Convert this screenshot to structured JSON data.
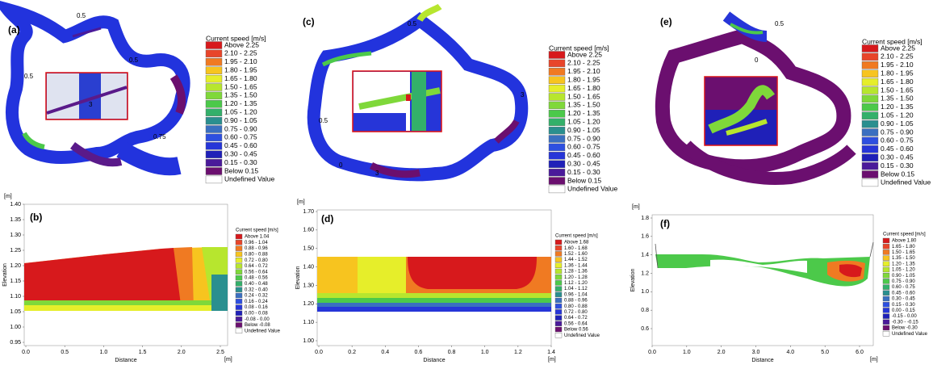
{
  "palette": [
    "#d7191c",
    "#e8452a",
    "#f07a22",
    "#f7c41f",
    "#e6ee2a",
    "#b7e62e",
    "#7fd83a",
    "#4cc94a",
    "#33b06a",
    "#2a8f8f",
    "#3a6fc0",
    "#2d4fe0",
    "#2635d8",
    "#1f20b8",
    "#4a1a9a",
    "#6b0f6f",
    "#ffffff"
  ],
  "panels": [
    {
      "label": "(a)",
      "legend": {
        "title": "Current speed [m/s]",
        "items": [
          "Above 2.25",
          "2.10 - 2.25",
          "1.95 - 2.10",
          "1.80 - 1.95",
          "1.65 - 1.80",
          "1.50 - 1.65",
          "1.35 - 1.50",
          "1.20 - 1.35",
          "1.05 - 1.20",
          "0.90 - 1.05",
          "0.75 - 0.90",
          "0.60 - 0.75",
          "0.45 - 0.60",
          "0.30 - 0.45",
          "0.15 - 0.30",
          "Below 0.15",
          "Undefined Value"
        ]
      },
      "contour_labels": [
        "0.5",
        "0.5",
        "3",
        "0.75",
        "0.5"
      ]
    },
    {
      "label": "(c)",
      "legend": {
        "title": "Current speed [m/s]",
        "items": [
          "Above 2.25",
          "2.10 - 2.25",
          "1.95 - 2.10",
          "1.80 - 1.95",
          "1.65 - 1.80",
          "1.50 - 1.65",
          "1.35 - 1.50",
          "1.20 - 1.35",
          "1.05 - 1.20",
          "0.90 - 1.05",
          "0.75 - 0.90",
          "0.60 - 0.75",
          "0.45 - 0.60",
          "0.30 - 0.45",
          "0.15 - 0.30",
          "Below 0.15",
          "Undefined Value"
        ]
      },
      "contour_labels": [
        "0.5",
        "3",
        "0",
        "3",
        "0.5"
      ]
    },
    {
      "label": "(e)",
      "legend": {
        "title": "Current speed [m/s]",
        "items": [
          "Above 2.25",
          "2.10 - 2.25",
          "1.95 - 2.10",
          "1.80 - 1.95",
          "1.65 - 1.80",
          "1.50 - 1.65",
          "1.35 - 1.50",
          "1.20 - 1.35",
          "1.05 - 1.20",
          "0.90 - 1.05",
          "0.75 - 0.90",
          "0.60 - 0.75",
          "0.45 - 0.60",
          "0.30 - 0.45",
          "0.15 - 0.30",
          "Below 0.15",
          "Undefined Value"
        ]
      },
      "contour_labels": [
        "0.5",
        "0"
      ]
    },
    {
      "label": "(b)",
      "y_unit": "[m]",
      "x_unit": "[m]",
      "y_title": "Elevation",
      "x_title": "Distance",
      "yticks": [
        "1.40",
        "1.35",
        "1.30",
        "1.25",
        "1.20",
        "1.15",
        "1.10",
        "1.05",
        "1.00",
        "0.95"
      ],
      "xticks": [
        "0.0",
        "0.5",
        "1.0",
        "1.5",
        "2.0",
        "2.5"
      ],
      "legend": {
        "title": "Current speed [m/s]",
        "items": [
          "Above  1.04",
          "0.96 - 1.04",
          "0.88 - 0.96",
          "0.80 - 0.88",
          "0.72 - 0.80",
          "0.64 - 0.72",
          "0.56 - 0.64",
          "0.48 - 0.56",
          "0.40 - 0.48",
          "0.32 - 0.40",
          "0.24 - 0.32",
          "0.16 - 0.24",
          "0.08 - 0.16",
          "0.00 - 0.08",
          "-0.08 - 0.00",
          "Below -0.08",
          "Undefined Value"
        ]
      }
    },
    {
      "label": "(d)",
      "y_unit": "[m]",
      "x_unit": "[m]",
      "y_title": "Elevation",
      "x_title": "Distance",
      "yticks": [
        "1.70",
        "1.60",
        "1.50",
        "1.40",
        "1.30",
        "1.20",
        "1.10",
        "1.00"
      ],
      "xticks": [
        "0.0",
        "0.2",
        "0.4",
        "0.6",
        "0.8",
        "1.0",
        "1.2",
        "1.4"
      ],
      "legend": {
        "title": "Current speed [m/s]",
        "items": [
          "Above 1.68",
          "1.60 - 1.68",
          "1.52 - 1.60",
          "1.44 - 1.52",
          "1.36 - 1.44",
          "1.28 - 1.36",
          "1.20 - 1.28",
          "1.12 - 1.20",
          "1.04 - 1.12",
          "0.96 - 1.04",
          "0.88 - 0.96",
          "0.80 - 0.88",
          "0.72 - 0.80",
          "0.64 - 0.72",
          "0.56 - 0.64",
          "Below 0.56",
          "Undefined Value"
        ]
      }
    },
    {
      "label": "(f)",
      "y_unit": "[m]",
      "x_unit": "[m]",
      "y_title": "Elevation",
      "x_title": "Distance",
      "yticks": [
        "1.8",
        "1.6",
        "1.4",
        "1.2",
        "1.0",
        "0.8",
        "0.6"
      ],
      "xticks": [
        "0.0",
        "1.0",
        "2.0",
        "3.0",
        "4.0",
        "5.0",
        "6.0"
      ],
      "legend": {
        "title": "Current speed [m/s]",
        "items": [
          "Above  1.80",
          "1.65 - 1.80",
          "1.50 - 1.65",
          "1.35 - 1.50",
          "1.20 - 1.35",
          "1.05 - 1.20",
          "0.90 - 1.05",
          "0.75 - 0.90",
          "0.60 - 0.75",
          "0.45 - 0.60",
          "0.30 - 0.45",
          "0.15 - 0.30",
          "0.00 - 0.15",
          "-0.15 - 0.00",
          "-0.30 - -0.15",
          "Below -0.30",
          "Undefined Value"
        ]
      }
    }
  ]
}
